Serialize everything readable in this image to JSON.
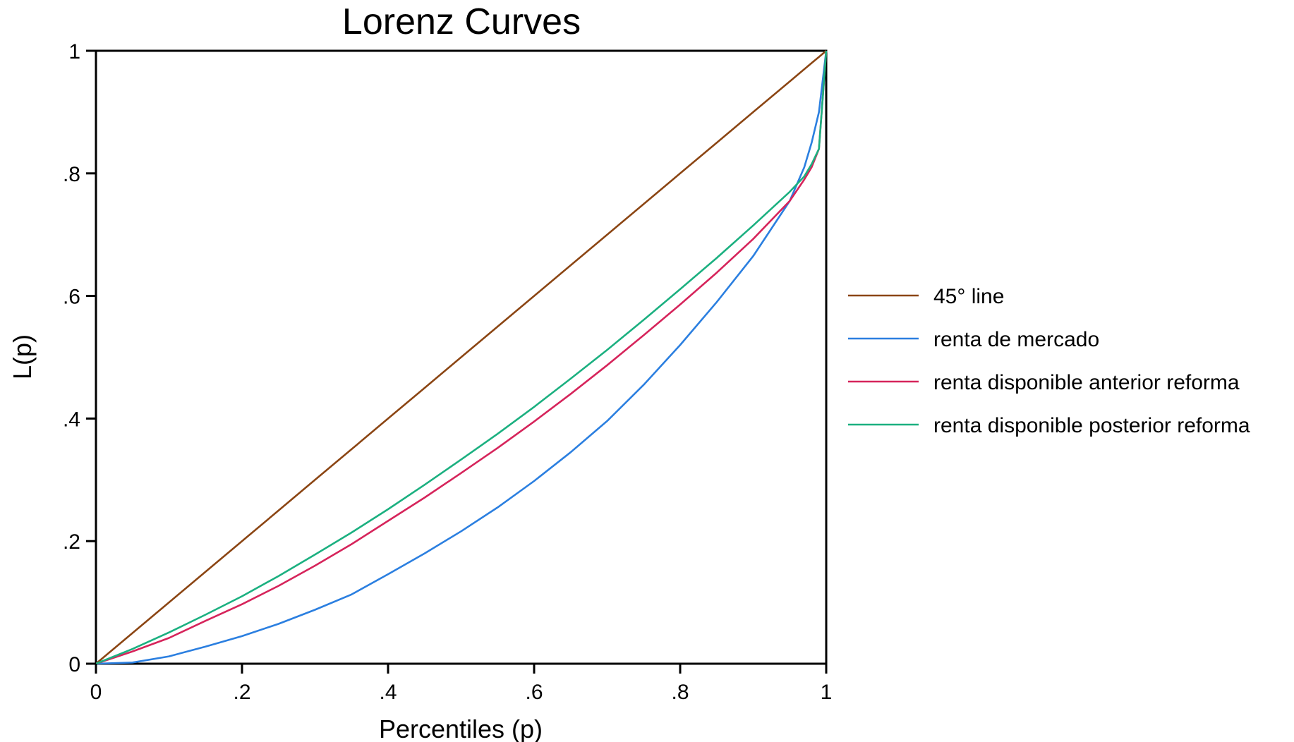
{
  "chart_data": {
    "type": "line",
    "title": "Lorenz Curves",
    "xlabel": "Percentiles (p)",
    "ylabel": "L(p)",
    "xlim": [
      0,
      1
    ],
    "ylim": [
      0,
      1
    ],
    "x_ticks": [
      0,
      0.2,
      0.4,
      0.6,
      0.8,
      1
    ],
    "x_tick_labels": [
      "0",
      ".2",
      ".4",
      ".6",
      ".8",
      "1"
    ],
    "y_ticks": [
      0,
      0.2,
      0.4,
      0.6,
      0.8,
      1
    ],
    "y_tick_labels": [
      "0",
      ".2",
      ".4",
      ".6",
      ".8",
      "1"
    ],
    "grid": false,
    "legend_position": "right",
    "x": [
      0,
      0.05,
      0.1,
      0.15,
      0.2,
      0.25,
      0.3,
      0.35,
      0.4,
      0.45,
      0.5,
      0.55,
      0.6,
      0.65,
      0.7,
      0.75,
      0.8,
      0.85,
      0.9,
      0.95,
      0.97,
      0.98,
      0.99,
      1
    ],
    "series": [
      {
        "name": " 45° line",
        "color": "#8B4513",
        "values": [
          0,
          0.05,
          0.1,
          0.15,
          0.2,
          0.25,
          0.3,
          0.35,
          0.4,
          0.45,
          0.5,
          0.55,
          0.6,
          0.65,
          0.7,
          0.75,
          0.8,
          0.85,
          0.9,
          0.95,
          0.97,
          0.98,
          0.99,
          1
        ]
      },
      {
        "name": "renta de mercado",
        "color": "#2B7FE0",
        "values": [
          0,
          0.002,
          0.012,
          0.028,
          0.045,
          0.065,
          0.088,
          0.113,
          0.146,
          0.18,
          0.216,
          0.255,
          0.298,
          0.345,
          0.396,
          0.455,
          0.52,
          0.59,
          0.665,
          0.755,
          0.81,
          0.85,
          0.9,
          1
        ]
      },
      {
        "name": "renta disponible anterior reforma",
        "color": "#D6245B",
        "values": [
          0,
          0.02,
          0.042,
          0.07,
          0.097,
          0.127,
          0.16,
          0.195,
          0.233,
          0.271,
          0.311,
          0.352,
          0.395,
          0.44,
          0.487,
          0.536,
          0.586,
          0.638,
          0.693,
          0.755,
          0.79,
          0.81,
          0.84,
          1
        ]
      },
      {
        "name": "renta disponible posterior reforma",
        "color": "#1BB080",
        "values": [
          0,
          0.024,
          0.051,
          0.08,
          0.11,
          0.143,
          0.178,
          0.214,
          0.252,
          0.292,
          0.333,
          0.375,
          0.419,
          0.465,
          0.512,
          0.561,
          0.611,
          0.662,
          0.715,
          0.77,
          0.795,
          0.815,
          0.84,
          1
        ]
      }
    ]
  }
}
